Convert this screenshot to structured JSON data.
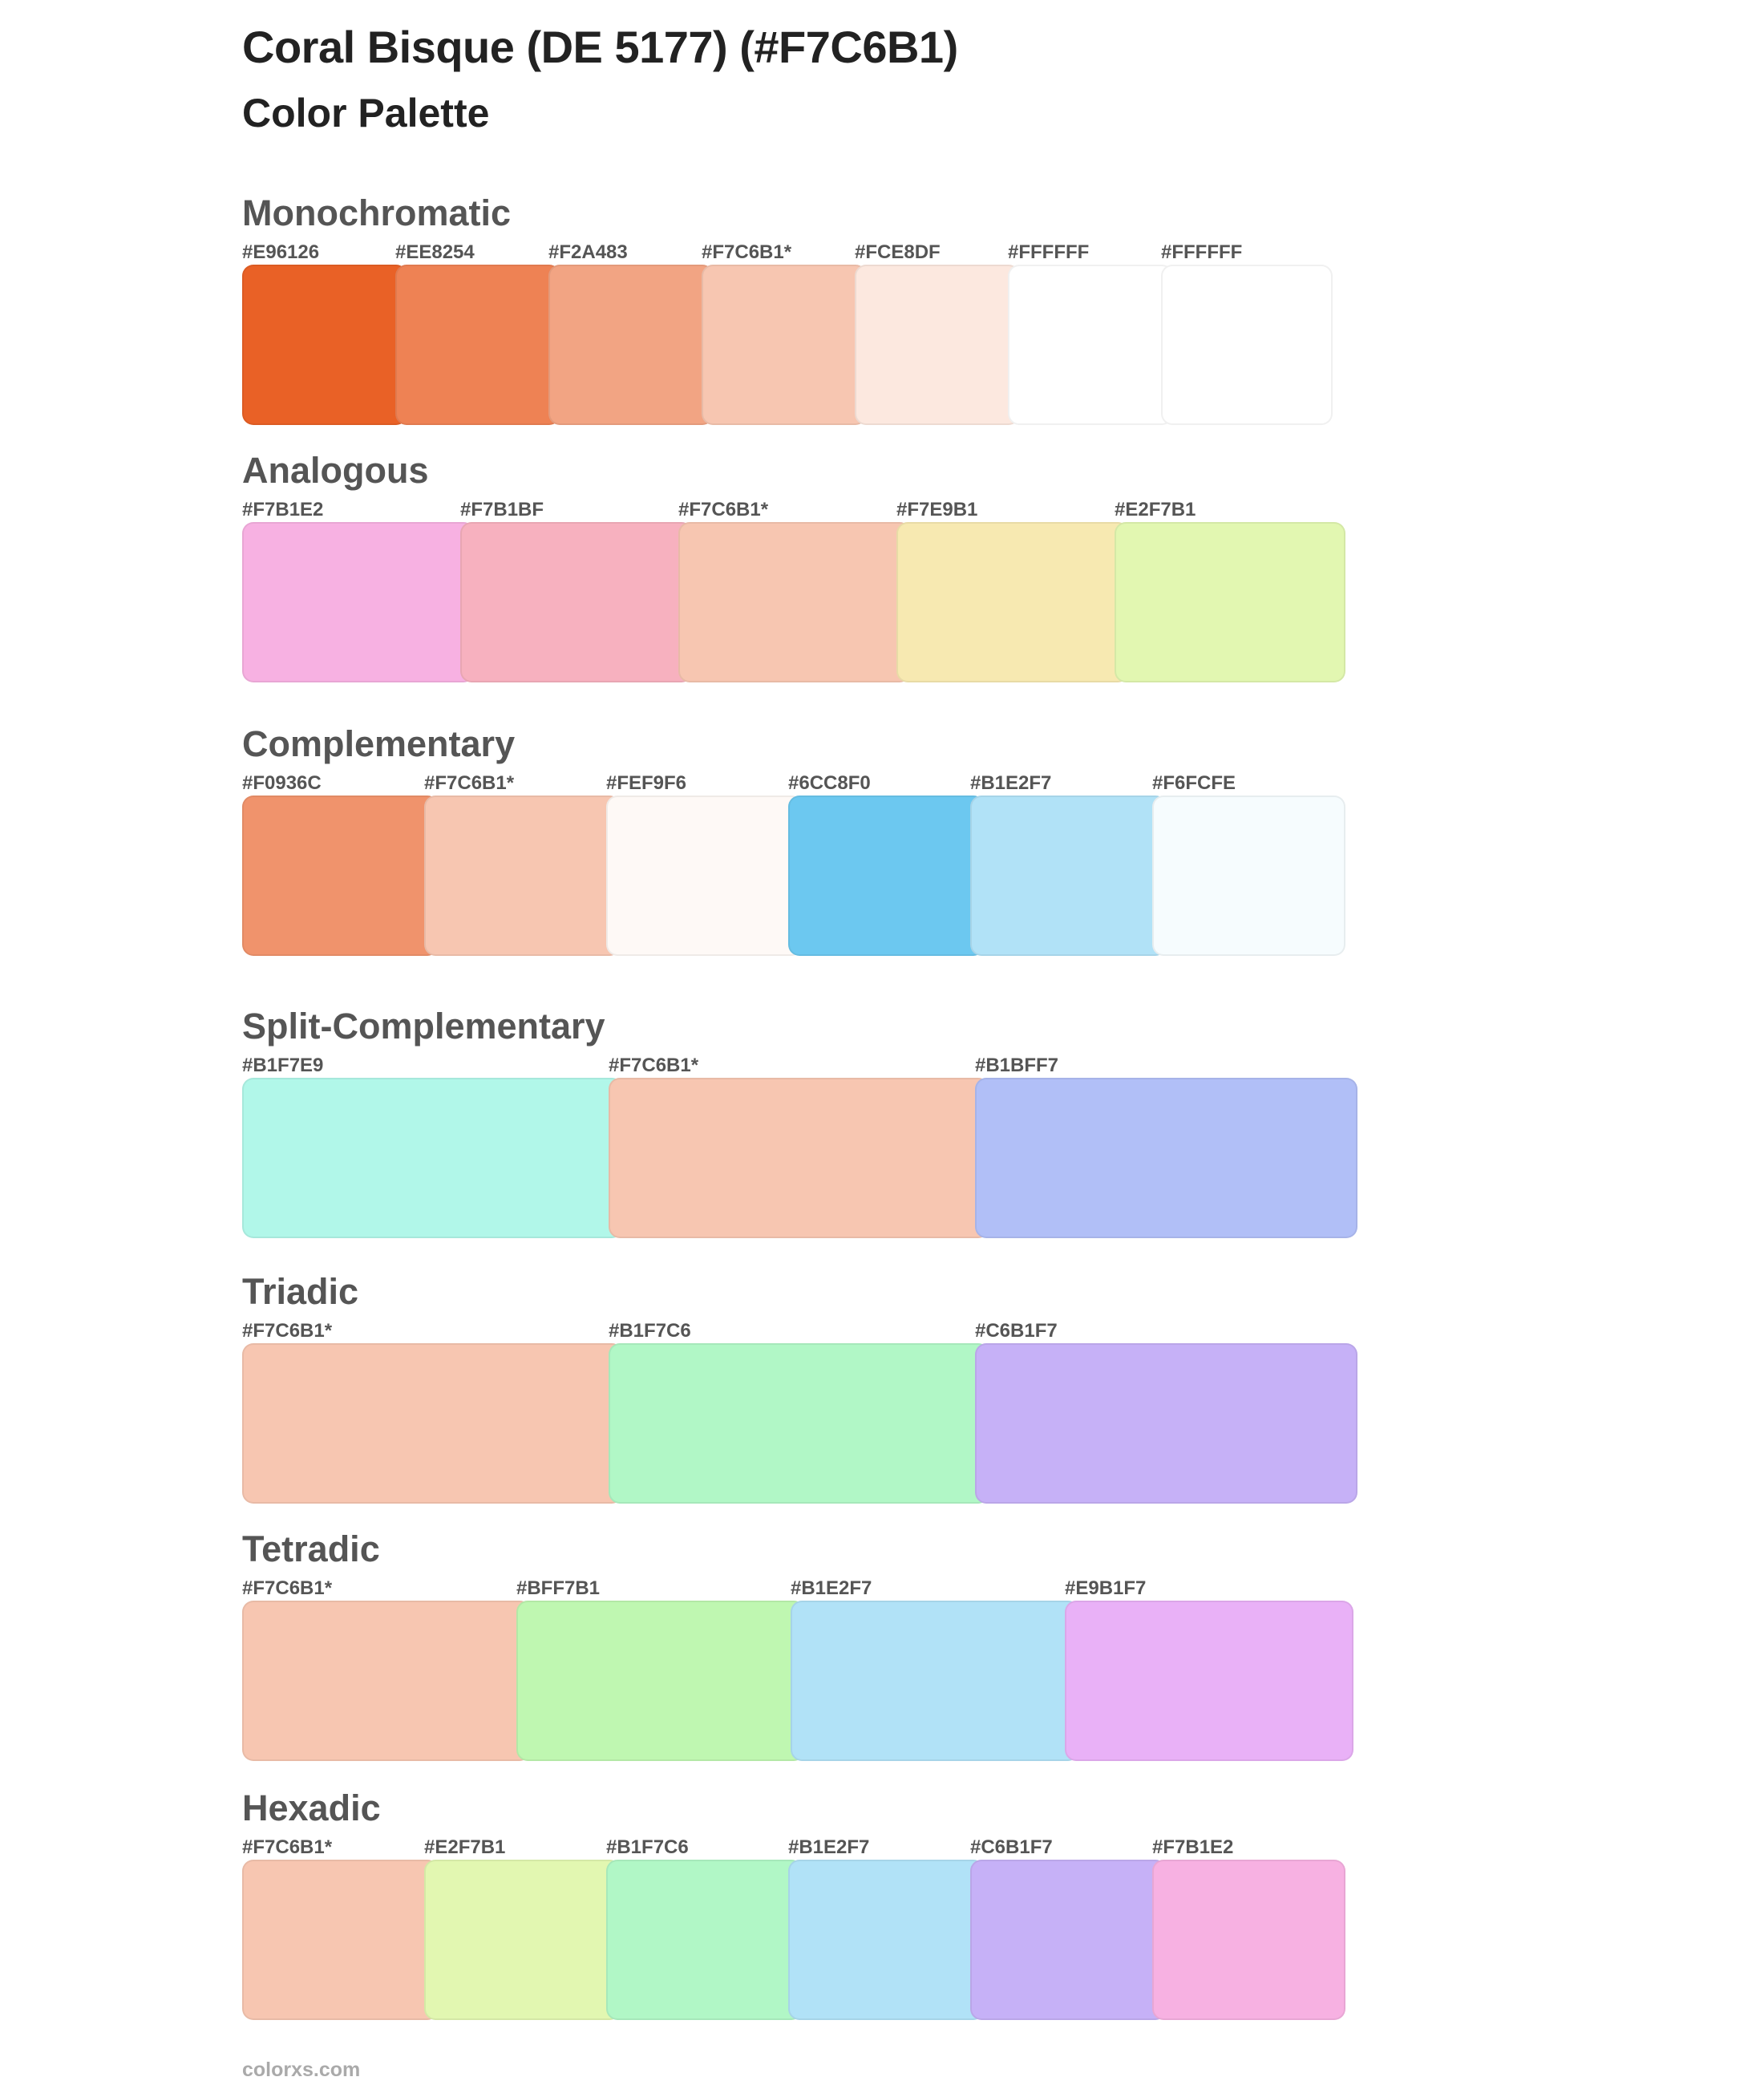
{
  "header": {
    "title": "Coral Bisque (DE 5177) (#F7C6B1)",
    "subtitle": "Color Palette"
  },
  "palettes": [
    {
      "name": "Monochromatic",
      "swatches": [
        {
          "label": "#E96126",
          "color": "#E96126"
        },
        {
          "label": "#EE8254",
          "color": "#EE8254"
        },
        {
          "label": "#F2A483",
          "color": "#F2A483"
        },
        {
          "label": "#F7C6B1*",
          "color": "#F7C6B1"
        },
        {
          "label": "#FCE8DF",
          "color": "#FCE8DF"
        },
        {
          "label": "#FFFFFF",
          "color": "#FFFFFF"
        },
        {
          "label": "#FFFFFF",
          "color": "#FFFFFF"
        }
      ]
    },
    {
      "name": "Analogous",
      "swatches": [
        {
          "label": "#F7B1E2",
          "color": "#F7B1E2"
        },
        {
          "label": "#F7B1BF",
          "color": "#F7B1BF"
        },
        {
          "label": "#F7C6B1*",
          "color": "#F7C6B1"
        },
        {
          "label": "#F7E9B1",
          "color": "#F7E9B1"
        },
        {
          "label": "#E2F7B1",
          "color": "#E2F7B1"
        }
      ]
    },
    {
      "name": "Complementary",
      "swatches": [
        {
          "label": "#F0936C",
          "color": "#F0936C"
        },
        {
          "label": "#F7C6B1*",
          "color": "#F7C6B1"
        },
        {
          "label": "#FEF9F6",
          "color": "#FEF9F6"
        },
        {
          "label": "#6CC8F0",
          "color": "#6CC8F0"
        },
        {
          "label": "#B1E2F7",
          "color": "#B1E2F7"
        },
        {
          "label": "#F6FCFE",
          "color": "#F6FCFE"
        }
      ]
    },
    {
      "name": "Split-Complementary",
      "swatches": [
        {
          "label": "#B1F7E9",
          "color": "#B1F7E9"
        },
        {
          "label": "#F7C6B1*",
          "color": "#F7C6B1"
        },
        {
          "label": "#B1BFF7",
          "color": "#B1BFF7"
        }
      ]
    },
    {
      "name": "Triadic",
      "swatches": [
        {
          "label": "#F7C6B1*",
          "color": "#F7C6B1"
        },
        {
          "label": "#B1F7C6",
          "color": "#B1F7C6"
        },
        {
          "label": "#C6B1F7",
          "color": "#C6B1F7"
        }
      ]
    },
    {
      "name": "Tetradic",
      "swatches": [
        {
          "label": "#F7C6B1*",
          "color": "#F7C6B1"
        },
        {
          "label": "#BFF7B1",
          "color": "#BFF7B1"
        },
        {
          "label": "#B1E2F7",
          "color": "#B1E2F7"
        },
        {
          "label": "#E9B1F7",
          "color": "#E9B1F7"
        }
      ]
    },
    {
      "name": "Hexadic",
      "swatches": [
        {
          "label": "#F7C6B1*",
          "color": "#F7C6B1"
        },
        {
          "label": "#E2F7B1",
          "color": "#E2F7B1"
        },
        {
          "label": "#B1F7C6",
          "color": "#B1F7C6"
        },
        {
          "label": "#B1E2F7",
          "color": "#B1E2F7"
        },
        {
          "label": "#C6B1F7",
          "color": "#C6B1F7"
        },
        {
          "label": "#F7B1E2",
          "color": "#F7B1E2"
        }
      ]
    }
  ],
  "footer": {
    "site": "colorxs.com"
  }
}
